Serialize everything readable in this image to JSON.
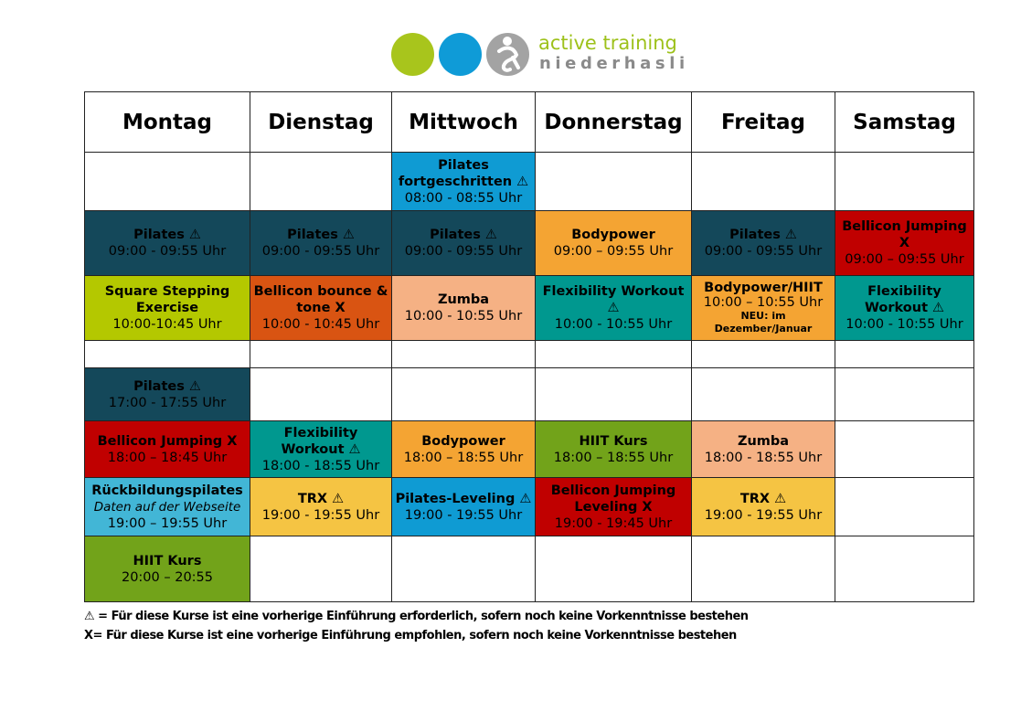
{
  "logo": {
    "brand_line1": "active training",
    "brand_line2": "niederhasli"
  },
  "days": [
    "Montag",
    "Dienstag",
    "Mittwoch",
    "Donnerstag",
    "Freitag",
    "Samstag"
  ],
  "warn": "⚠",
  "cls": {
    "mi_0800": {
      "title": "Pilates fortgeschritten ⚠",
      "time": "08:00 - 08:55 Uhr"
    },
    "mo_0900": {
      "title": "Pilates ⚠",
      "time": "09:00 - 09:55 Uhr"
    },
    "di_0900": {
      "title": "Pilates ⚠",
      "time": "09:00 - 09:55 Uhr"
    },
    "mi_0900": {
      "title": "Pilates ⚠",
      "time": "09:00 - 09:55 Uhr"
    },
    "do_0900": {
      "title": "Bodypower",
      "time": "09:00 – 09:55 Uhr"
    },
    "fr_0900": {
      "title": "Pilates ⚠",
      "time": "09:00 - 09:55 Uhr"
    },
    "sa_0900": {
      "title": "Bellicon Jumping X",
      "time": "09:00 – 09:55 Uhr"
    },
    "mo_1000": {
      "title": "Square Stepping Exercise",
      "time": "10:00-10:45 Uhr"
    },
    "di_1000": {
      "title": "Bellicon bounce & tone X",
      "time": "10:00 - 10:45 Uhr"
    },
    "mi_1000": {
      "title": "Zumba",
      "time": "10:00 - 10:55 Uhr"
    },
    "do_1000": {
      "title": "Flexibility Workout ⚠",
      "time": "10:00 - 10:55 Uhr"
    },
    "fr_1000": {
      "title": "Bodypower/HIIT",
      "time": "10:00 – 10:55 Uhr",
      "note": "NEU: im Dezember/Januar"
    },
    "sa_1000": {
      "title": "Flexibility Workout ⚠",
      "time": "10:00 - 10:55 Uhr"
    },
    "mo_1700": {
      "title": "Pilates ⚠",
      "time": "17:00 - 17:55 Uhr"
    },
    "mo_1800": {
      "title": "Bellicon Jumping X",
      "time": "18:00 – 18:45 Uhr"
    },
    "di_1800": {
      "title": "Flexibility Workout ⚠",
      "time": "18:00 - 18:55 Uhr"
    },
    "mi_1800": {
      "title": "Bodypower",
      "time": "18:00 – 18:55 Uhr"
    },
    "do_1800": {
      "title": "HIIT Kurs",
      "time": "18:00 – 18:55 Uhr"
    },
    "fr_1800": {
      "title": "Zumba",
      "time": "18:00 - 18:55 Uhr"
    },
    "mo_1900": {
      "title": "Rückbildungspilates",
      "note": "Daten auf der Webseite",
      "time": "19:00 – 19:55 Uhr"
    },
    "di_1900": {
      "title": "TRX ⚠",
      "time": "19:00 - 19:55 Uhr"
    },
    "mi_1900": {
      "title": "Pilates-Leveling ⚠",
      "time": "19:00 - 19:55 Uhr"
    },
    "do_1900": {
      "title": "Bellicon Jumping Leveling X",
      "time": "19:00 - 19:45 Uhr"
    },
    "fr_1900": {
      "title": "TRX ⚠",
      "time": "19:00 - 19:55 Uhr"
    },
    "mo_2000": {
      "title": "HIIT Kurs",
      "time": "20:00 – 20:55"
    }
  },
  "legend": {
    "line1": "⚠ = Für diese Kurse ist eine vorherige Einführung erforderlich, sofern noch keine Vorkenntnisse bestehen",
    "line2": "X= Für diese Kurse ist eine vorherige Einführung empfohlen, sofern noch keine Vorkenntnisse bestehen"
  },
  "colors": {
    "dark_teal": "#14485a",
    "light_blue": "#0f9bd3",
    "orange": "#f4a433",
    "red": "#c00000",
    "lime": "#b4c800",
    "dark_orange": "#d95412",
    "salmon": "#f5b184",
    "teal": "#00988f",
    "green": "#72a31a",
    "cyan": "#42b6d6",
    "yellow": "#f5c443"
  }
}
